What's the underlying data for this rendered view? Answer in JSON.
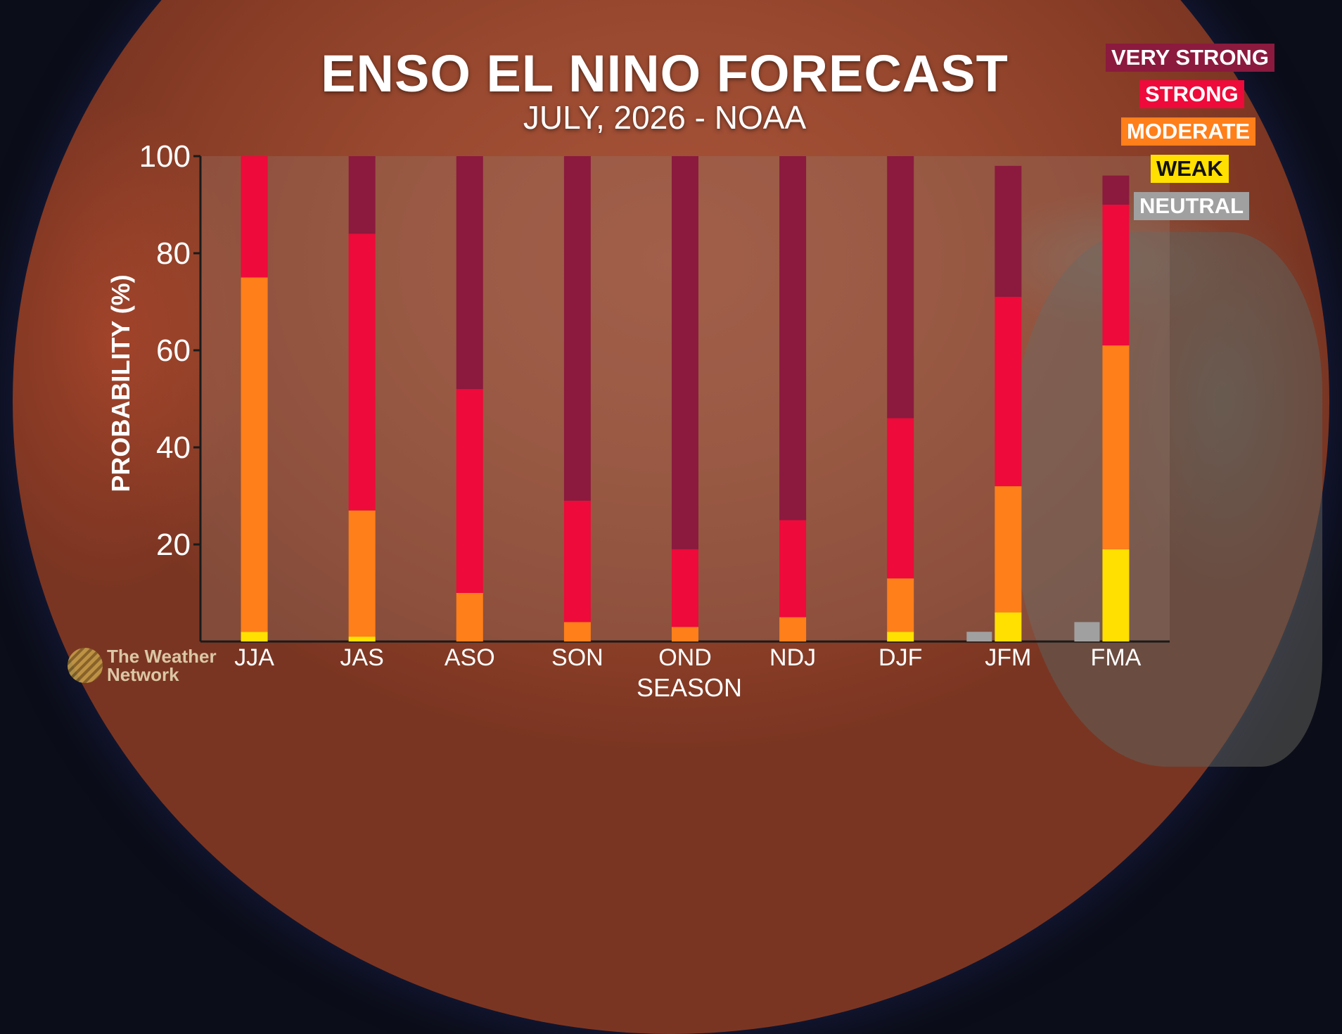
{
  "title": "ENSO EL NINO FORECAST",
  "subtitle": "JULY, 2026 - NOAA",
  "logo_text": [
    "The Weather",
    "Network"
  ],
  "chart_data": {
    "type": "bar",
    "stacked": true,
    "title": "ENSO EL NINO FORECAST",
    "subtitle": "JULY, 2026 - NOAA",
    "xlabel": "SEASON",
    "ylabel": "PROBABILITY (%)",
    "ylim": [
      0,
      100
    ],
    "yticks": [
      20,
      40,
      60,
      80,
      100
    ],
    "categories": [
      "JJA",
      "JAS",
      "ASO",
      "SON",
      "OND",
      "NDJ",
      "DJF",
      "JFM",
      "FMA"
    ],
    "series": [
      {
        "name": "NEUTRAL",
        "color": "#a0a0a0",
        "values": [
          0,
          0,
          0,
          0,
          0,
          0,
          0,
          2,
          4
        ]
      },
      {
        "name": "WEAK",
        "color": "#ffe000",
        "values": [
          2,
          1,
          0,
          0,
          0,
          0,
          2,
          6,
          19
        ]
      },
      {
        "name": "MODERATE",
        "color": "#ff7f1a",
        "values": [
          73,
          26,
          10,
          4,
          3,
          5,
          11,
          26,
          42
        ]
      },
      {
        "name": "STRONG",
        "color": "#ee0a3a",
        "values": [
          25,
          57,
          42,
          25,
          16,
          20,
          33,
          39,
          29
        ]
      },
      {
        "name": "VERY STRONG",
        "color": "#8b1a3e",
        "values": [
          0,
          16,
          48,
          71,
          81,
          75,
          54,
          27,
          6
        ]
      }
    ],
    "legend": [
      "VERY STRONG",
      "STRONG",
      "MODERATE",
      "WEAK",
      "NEUTRAL"
    ],
    "legend_position": "top-right",
    "grid": false
  }
}
